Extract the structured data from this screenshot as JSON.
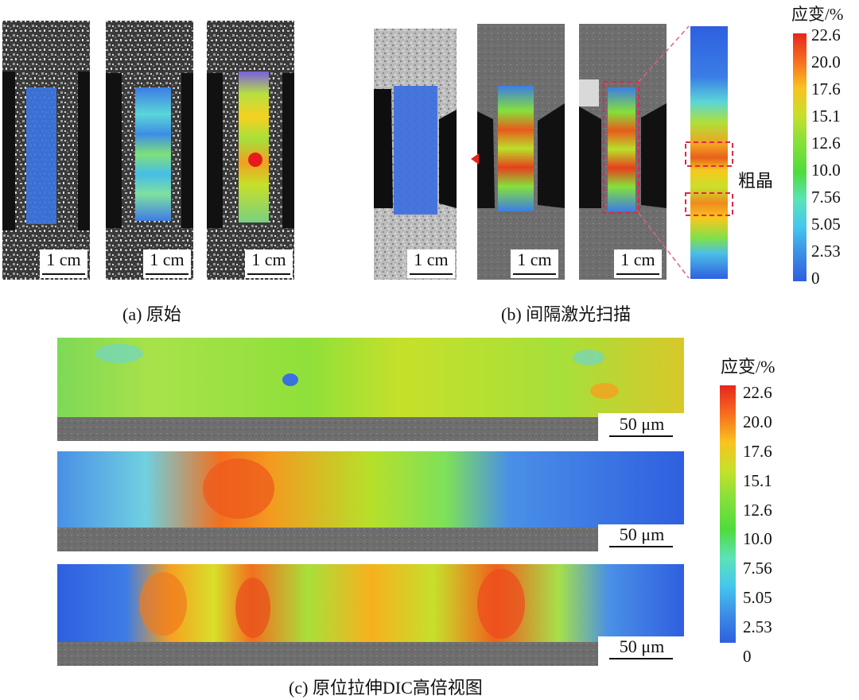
{
  "captions": {
    "a": "(a) 原始",
    "b": "(b) 间隔激光扫描",
    "c": "(c) 原位拉伸DIC高倍视图"
  },
  "scalebars": {
    "cm": "1 cm",
    "um": "50 μm"
  },
  "callout": "粗晶",
  "colorbar": {
    "title": "应变/%",
    "ticks": [
      "22.6",
      "20.0",
      "17.6",
      "15.1",
      "12.6",
      "10.0",
      "7.56",
      "5.05",
      "2.53",
      "0"
    ],
    "colors": [
      "#e6261c",
      "#f86c1f",
      "#f9c31e",
      "#a8e02a",
      "#6fe03a",
      "#4fdc3c",
      "#5be3b8",
      "#45c7ee",
      "#3c8de6",
      "#2f5fe0"
    ]
  }
}
